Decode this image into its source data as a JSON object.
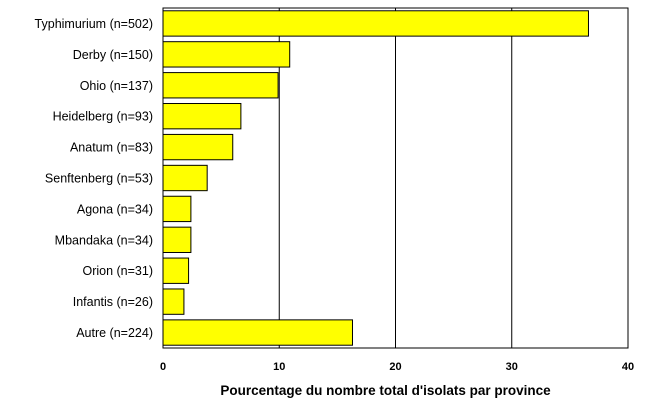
{
  "chart_data": {
    "type": "bar",
    "orientation": "horizontal",
    "categories": [
      "Typhimurium (n=502)",
      "Derby (n=150)",
      "Ohio (n=137)",
      "Heidelberg (n=93)",
      "Anatum (n=83)",
      "Senftenberg (n=53)",
      "Agona (n=34)",
      "Mbandaka (n=34)",
      "Orion (n=31)",
      "Infantis (n=26)",
      "Autre (n=224)"
    ],
    "values": [
      36.6,
      10.9,
      9.9,
      6.7,
      6.0,
      3.8,
      2.4,
      2.4,
      2.2,
      1.8,
      16.3
    ],
    "xlabel": "Pourcentage du nombre total d'isolats par province",
    "ylabel": "",
    "xlim": [
      0,
      40
    ],
    "xticks": [
      "0",
      "10",
      "20",
      "30",
      "40"
    ],
    "grid": "vertical",
    "legend": "none",
    "colors": {
      "bar_fill": "#ffff00",
      "bar_stroke": "#000000",
      "grid": "#000000"
    }
  }
}
